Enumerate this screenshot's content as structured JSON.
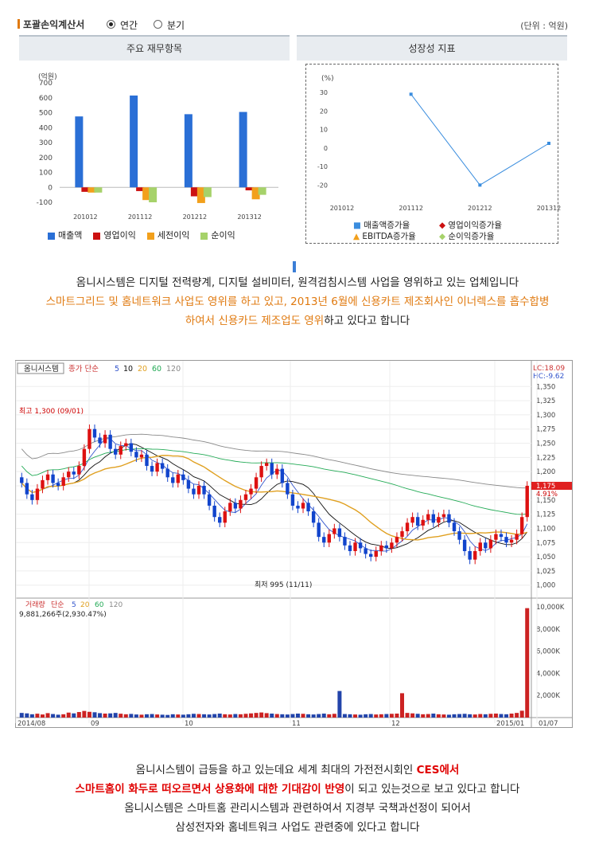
{
  "header": {
    "title": "포괄손익계산서",
    "radio_annual": "연간",
    "radio_quarter": "분기",
    "unit": "(단위 : 억원)"
  },
  "panels": {
    "left_title": "주요 재무항목",
    "right_title": "성장성 지표"
  },
  "chart_data": [
    {
      "type": "bar",
      "ylabel": "(억원)",
      "ylim": [
        -100,
        700
      ],
      "yticks": [
        -100,
        0,
        100,
        200,
        300,
        400,
        500,
        600,
        700
      ],
      "categories": [
        "201012",
        "201112",
        "201212",
        "201312"
      ],
      "series": [
        {
          "name": "매출액",
          "color": "#2a6fd6",
          "values": [
            475,
            615,
            490,
            505
          ]
        },
        {
          "name": "영업이익",
          "color": "#cc1111",
          "values": [
            -30,
            -25,
            -60,
            -20
          ]
        },
        {
          "name": "세전이익",
          "color": "#f2a01c",
          "values": [
            -35,
            -85,
            -105,
            -80
          ]
        },
        {
          "name": "순이익",
          "color": "#a6d26a",
          "values": [
            -35,
            -100,
            -65,
            -50
          ]
        }
      ]
    },
    {
      "type": "line",
      "ylabel": "(%)",
      "ylim": [
        -25,
        30
      ],
      "yticks": [
        -20,
        -10,
        0,
        10,
        20,
        30
      ],
      "categories": [
        "201012",
        "201112",
        "201212",
        "201312"
      ],
      "series": [
        {
          "name": "매출액증가율",
          "color": "#3a8dde",
          "values": [
            null,
            29,
            -20,
            2.5
          ]
        },
        {
          "name": "영업이익증가율",
          "color": "#cc1111",
          "values": [
            null,
            null,
            null,
            null
          ]
        },
        {
          "name": "EBITDA증가율",
          "color": "#f2a01c",
          "values": [
            null,
            null,
            null,
            null
          ]
        },
        {
          "name": "순이익증가율",
          "color": "#a6d26a",
          "values": [
            null,
            null,
            null,
            null
          ]
        }
      ]
    },
    {
      "type": "candlestick",
      "title": "옴니시스템",
      "ma_label": "종가 단순",
      "ma_periods": [
        "5",
        "10",
        "20",
        "60",
        "120"
      ],
      "ma_colors": [
        "#3355cc",
        "#111111",
        "#e0a020",
        "#22aa55",
        "#888888"
      ],
      "lc_label": "LC:18.09",
      "hc_label": "HC:-9.62",
      "last_price": "1,175",
      "last_change": "4.91%",
      "yticks": [
        "1,350",
        "1,325",
        "1,300",
        "1,275",
        "1,250",
        "1,225",
        "1,200",
        "1,175",
        "1,150",
        "1,125",
        "1,100",
        "1,075",
        "1,050",
        "1,025",
        "1,000"
      ],
      "ylim": [
        980,
        1370
      ],
      "high_annotation": "최고 1,300 (09/01)",
      "low_annotation": "최저 995 (11/11)",
      "volume_label": "거래량",
      "volume_ma_label": "단순",
      "volume_ma_periods": [
        "5",
        "20",
        "60",
        "120"
      ],
      "volume_info": "9,881,266주(2,930.47%)",
      "volume_ticks": [
        "10,000K",
        "8,000K",
        "6,000K",
        "4,000K",
        "2,000K"
      ],
      "volume_ylim": [
        0,
        10500
      ],
      "x_labels": [
        "2014/08",
        "09",
        "10",
        "11",
        "12",
        "2015/01",
        "01/07"
      ],
      "closes": [
        1180,
        1160,
        1150,
        1170,
        1185,
        1195,
        1180,
        1175,
        1190,
        1200,
        1195,
        1210,
        1240,
        1275,
        1260,
        1250,
        1265,
        1240,
        1230,
        1245,
        1250,
        1235,
        1225,
        1230,
        1210,
        1200,
        1215,
        1205,
        1190,
        1180,
        1195,
        1185,
        1170,
        1160,
        1175,
        1160,
        1140,
        1120,
        1110,
        1130,
        1145,
        1135,
        1150,
        1160,
        1170,
        1190,
        1210,
        1215,
        1195,
        1205,
        1180,
        1160,
        1140,
        1135,
        1145,
        1130,
        1110,
        1085,
        1075,
        1090,
        1100,
        1085,
        1070,
        1060,
        1075,
        1065,
        1055,
        1050,
        1060,
        1070,
        1065,
        1075,
        1085,
        1095,
        1110,
        1120,
        1105,
        1115,
        1125,
        1110,
        1120,
        1125,
        1110,
        1095,
        1080,
        1060,
        1045,
        1060,
        1075,
        1065,
        1080,
        1090,
        1085,
        1075,
        1080,
        1090,
        1120,
        1175
      ],
      "volumes": [
        420,
        380,
        300,
        350,
        280,
        400,
        320,
        260,
        300,
        450,
        380,
        500,
        600,
        520,
        480,
        400,
        360,
        380,
        420,
        350,
        300,
        330,
        280,
        260,
        300,
        320,
        280,
        260,
        240,
        300,
        280,
        260,
        300,
        340,
        320,
        300,
        280,
        320,
        360,
        300,
        280,
        320,
        300,
        340,
        380,
        420,
        460,
        400,
        360,
        320,
        300,
        280,
        320,
        360,
        340,
        300,
        280,
        320,
        360,
        300,
        340,
        2400,
        320,
        300,
        280,
        260,
        300,
        320,
        280,
        300,
        320,
        340,
        360,
        2200,
        420,
        380,
        340,
        300,
        320,
        360,
        300,
        280,
        260,
        300,
        320,
        340,
        300,
        280,
        320,
        300,
        340,
        360,
        320,
        300,
        360,
        420,
        620,
        9881
      ]
    }
  ],
  "legend_left": [
    "매출액",
    "영업이익",
    "세전이익",
    "순이익"
  ],
  "legend_right": [
    "매출액증가율",
    "영업이익증가율",
    "EBITDA증가율",
    "순이익증가율"
  ],
  "text1": {
    "line1": "옴니시스템은 디지털 전력량계, 디지털 설비미터, 원격검침시스템 사업을 영위하고 있는 업체입니다",
    "line2": "스마트그리드 및 홈네트워크 사업도 영위를 하고 있고, 2013년 6월에 신용카트 제조회사인 이너렉스를 흡수합병",
    "line3a": "하여서 신용카드 제조업도 영위",
    "line3b": "하고 있다고 합니다"
  },
  "text2": {
    "line1a": "옴니시스템이 급등을 하고 있는데요 세계 최대의 가전전시회인 ",
    "line1b": "CES에서",
    "line2a": "스마트홈이 화두로 떠오르면서 상용화에 대한 기대감이 반영",
    "line2b": "이 되고 있는것으로 보고 있다고 합니다",
    "line3": "옴니시스템은 스마트홈 관리시스템과 관련하여서 지경부 국책과선정이 되어서",
    "line4": "삼성전자와 홈네트워크 사업도 관련중에 있다고 합니다"
  }
}
